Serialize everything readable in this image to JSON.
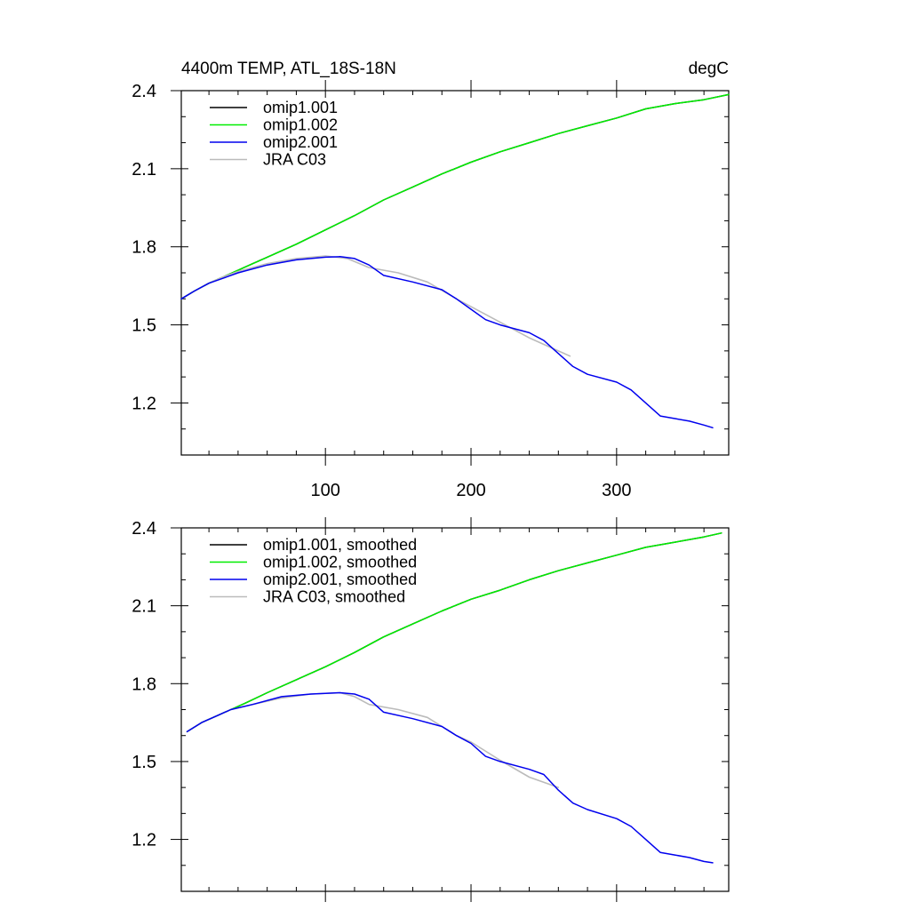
{
  "chart_data": [
    {
      "type": "line",
      "title": "4400m TEMP, ATL_18S-18N",
      "units": "degC",
      "xlabel": "",
      "ylabel": "",
      "xlim": [
        1,
        377
      ],
      "ylim": [
        1.0,
        2.4
      ],
      "xticks": [
        100,
        200,
        300
      ],
      "xtick_labels": [
        "100",
        "200",
        "300"
      ],
      "yticks": [
        1.2,
        1.5,
        1.8,
        2.1,
        2.4
      ],
      "ytick_labels": [
        "1.2",
        "1.5",
        "1.8",
        "2.1",
        "2.4"
      ],
      "grid": false,
      "legend": "top-left",
      "series": [
        {
          "name": "omip1.001",
          "color": "#000000",
          "x": [
            1,
            10,
            20,
            30,
            40,
            50,
            60,
            80,
            100,
            120,
            140,
            160,
            180,
            200,
            220,
            240,
            260,
            280,
            300,
            320,
            340,
            360,
            377
          ],
          "y": [
            1.6,
            1.63,
            1.66,
            1.685,
            1.71,
            1.735,
            1.76,
            1.81,
            1.865,
            1.92,
            1.98,
            2.03,
            2.08,
            2.125,
            2.165,
            2.2,
            2.235,
            2.265,
            2.295,
            2.33,
            2.35,
            2.365,
            2.385
          ]
        },
        {
          "name": "omip1.002",
          "color": "#00ee00",
          "x": [
            1,
            10,
            20,
            30,
            40,
            50,
            60,
            80,
            100,
            120,
            140,
            160,
            180,
            200,
            220,
            240,
            260,
            280,
            300,
            320,
            340,
            360,
            377
          ],
          "y": [
            1.6,
            1.63,
            1.66,
            1.685,
            1.71,
            1.735,
            1.76,
            1.81,
            1.865,
            1.92,
            1.98,
            2.03,
            2.08,
            2.125,
            2.165,
            2.2,
            2.235,
            2.265,
            2.295,
            2.33,
            2.35,
            2.365,
            2.385
          ]
        },
        {
          "name": "JRA C03",
          "color": "#bbbbbb",
          "x": [
            1,
            10,
            20,
            30,
            40,
            60,
            80,
            100,
            115,
            130,
            150,
            170,
            190,
            200,
            220,
            240,
            260,
            268
          ],
          "y": [
            1.6,
            1.63,
            1.66,
            1.685,
            1.705,
            1.735,
            1.755,
            1.765,
            1.755,
            1.72,
            1.7,
            1.665,
            1.6,
            1.57,
            1.51,
            1.45,
            1.4,
            1.38
          ]
        },
        {
          "name": "omip2.001",
          "color": "#0000ee",
          "x": [
            1,
            10,
            20,
            30,
            40,
            60,
            80,
            100,
            110,
            120,
            130,
            140,
            160,
            180,
            190,
            200,
            210,
            220,
            240,
            250,
            260,
            270,
            280,
            300,
            310,
            320,
            330,
            340,
            350,
            360,
            366
          ],
          "y": [
            1.6,
            1.63,
            1.66,
            1.68,
            1.7,
            1.73,
            1.75,
            1.76,
            1.762,
            1.755,
            1.73,
            1.69,
            1.665,
            1.635,
            1.6,
            1.56,
            1.52,
            1.5,
            1.47,
            1.44,
            1.39,
            1.34,
            1.31,
            1.28,
            1.25,
            1.2,
            1.15,
            1.14,
            1.13,
            1.115,
            1.105
          ]
        }
      ]
    },
    {
      "type": "line",
      "title": "",
      "xlabel": "",
      "ylabel": "",
      "xlim": [
        1,
        377
      ],
      "ylim": [
        1.0,
        2.4
      ],
      "xticks": [
        100,
        200,
        300
      ],
      "xtick_labels": [],
      "yticks": [
        1.2,
        1.5,
        1.8,
        2.1,
        2.4
      ],
      "ytick_labels": [
        "1.2",
        "1.5",
        "1.8",
        "2.1",
        "2.4"
      ],
      "grid": false,
      "legend": "top-left",
      "series": [
        {
          "name": "omip1.001, smoothed",
          "color": "#000000",
          "x": [
            5,
            15,
            25,
            35,
            45,
            60,
            80,
            100,
            120,
            140,
            160,
            180,
            200,
            220,
            240,
            260,
            280,
            300,
            320,
            340,
            360,
            372
          ],
          "y": [
            1.615,
            1.65,
            1.675,
            1.7,
            1.725,
            1.765,
            1.815,
            1.865,
            1.92,
            1.98,
            2.03,
            2.08,
            2.125,
            2.16,
            2.2,
            2.235,
            2.265,
            2.295,
            2.325,
            2.345,
            2.365,
            2.38
          ]
        },
        {
          "name": "omip1.002, smoothed",
          "color": "#00ee00",
          "x": [
            5,
            15,
            25,
            35,
            45,
            60,
            80,
            100,
            120,
            140,
            160,
            180,
            200,
            220,
            240,
            260,
            280,
            300,
            320,
            340,
            360,
            372
          ],
          "y": [
            1.615,
            1.65,
            1.675,
            1.7,
            1.725,
            1.765,
            1.815,
            1.865,
            1.92,
            1.98,
            2.03,
            2.08,
            2.125,
            2.16,
            2.2,
            2.235,
            2.265,
            2.295,
            2.325,
            2.345,
            2.365,
            2.38
          ]
        },
        {
          "name": "JRA C03, smoothed",
          "color": "#bbbbbb",
          "x": [
            5,
            15,
            25,
            35,
            50,
            70,
            90,
            110,
            120,
            130,
            150,
            170,
            190,
            200,
            220,
            240,
            260
          ],
          "y": [
            1.615,
            1.65,
            1.675,
            1.7,
            1.72,
            1.745,
            1.76,
            1.765,
            1.75,
            1.72,
            1.7,
            1.67,
            1.6,
            1.575,
            1.505,
            1.44,
            1.4
          ]
        },
        {
          "name": "omip2.001, smoothed",
          "color": "#0000ee",
          "x": [
            5,
            15,
            25,
            35,
            50,
            70,
            90,
            110,
            120,
            130,
            140,
            160,
            180,
            190,
            200,
            210,
            220,
            240,
            250,
            260,
            270,
            280,
            300,
            310,
            320,
            330,
            340,
            350,
            360,
            366
          ],
          "y": [
            1.615,
            1.65,
            1.675,
            1.7,
            1.72,
            1.75,
            1.76,
            1.765,
            1.76,
            1.74,
            1.69,
            1.665,
            1.635,
            1.6,
            1.57,
            1.52,
            1.5,
            1.47,
            1.45,
            1.39,
            1.34,
            1.315,
            1.28,
            1.25,
            1.2,
            1.15,
            1.14,
            1.13,
            1.115,
            1.11
          ]
        }
      ]
    }
  ]
}
